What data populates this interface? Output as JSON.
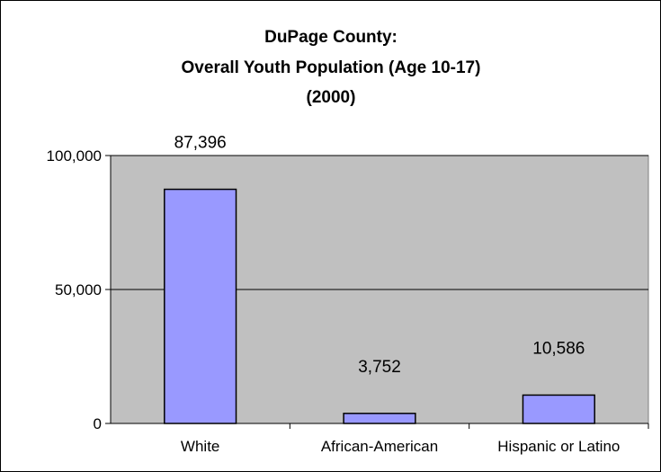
{
  "chart_data": {
    "type": "bar",
    "title": [
      "DuPage County:",
      "Overall Youth Population (Age 10-17)",
      "(2000)"
    ],
    "categories": [
      "White",
      "African-American",
      "Hispanic or Latino"
    ],
    "values": [
      87396,
      3752,
      10586
    ],
    "data_labels": [
      "87,396",
      "3,752",
      "10,586"
    ],
    "yticks": [
      0,
      50000,
      100000
    ],
    "ytick_labels": [
      "0",
      "50,000",
      "100,000"
    ],
    "ylim": [
      0,
      100000
    ],
    "xlabel": "",
    "ylabel": "",
    "grid": true,
    "legend": "none",
    "colors": {
      "plot_background": "#c0c0c0",
      "bar_fill": "#9999ff",
      "bar_stroke": "#000000",
      "gridline": "#000000"
    }
  }
}
